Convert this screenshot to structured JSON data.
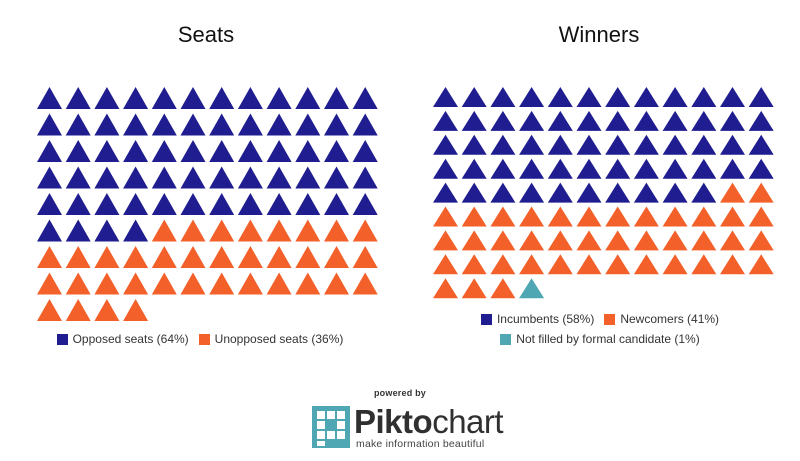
{
  "chart_data": [
    {
      "type": "pictograph",
      "title": "Seats",
      "icon": "triangle-icon",
      "columns": 12,
      "rows": [
        12,
        12,
        12,
        12,
        12,
        12,
        12,
        12,
        4
      ],
      "series": [
        {
          "name": "Opposed seats (64%)",
          "count": 64,
          "color": "#1f1d8f"
        },
        {
          "name": "Unopposed seats (36%)",
          "count": 36,
          "color": "#f4602a"
        }
      ],
      "legend": [
        [
          "Opposed seats (64%)",
          "Unopposed seats (36%)"
        ]
      ]
    },
    {
      "type": "pictograph",
      "title": "Winners",
      "icon": "triangle-icon",
      "columns": 12,
      "rows": [
        12,
        12,
        12,
        12,
        12,
        12,
        12,
        12,
        4
      ],
      "series": [
        {
          "name": "Incumbents (58%)",
          "count": 58,
          "color": "#1f1d8f"
        },
        {
          "name": "Newcomers (41%)",
          "count": 41,
          "color": "#f4602a"
        },
        {
          "name": "Not filled by formal candidate (1%)",
          "count": 1,
          "color": "#4ea7b3"
        }
      ],
      "legend": [
        [
          "Incumbents (58%)",
          "Newcomers (41%)"
        ],
        [
          "Not filled by formal candidate (1%)"
        ]
      ]
    }
  ],
  "footer": {
    "powered_by": "powered by",
    "brand_prefix": "Pikto",
    "brand_suffix": "chart",
    "tagline": "make information beautiful",
    "brand_color": "#4ea7b3"
  }
}
